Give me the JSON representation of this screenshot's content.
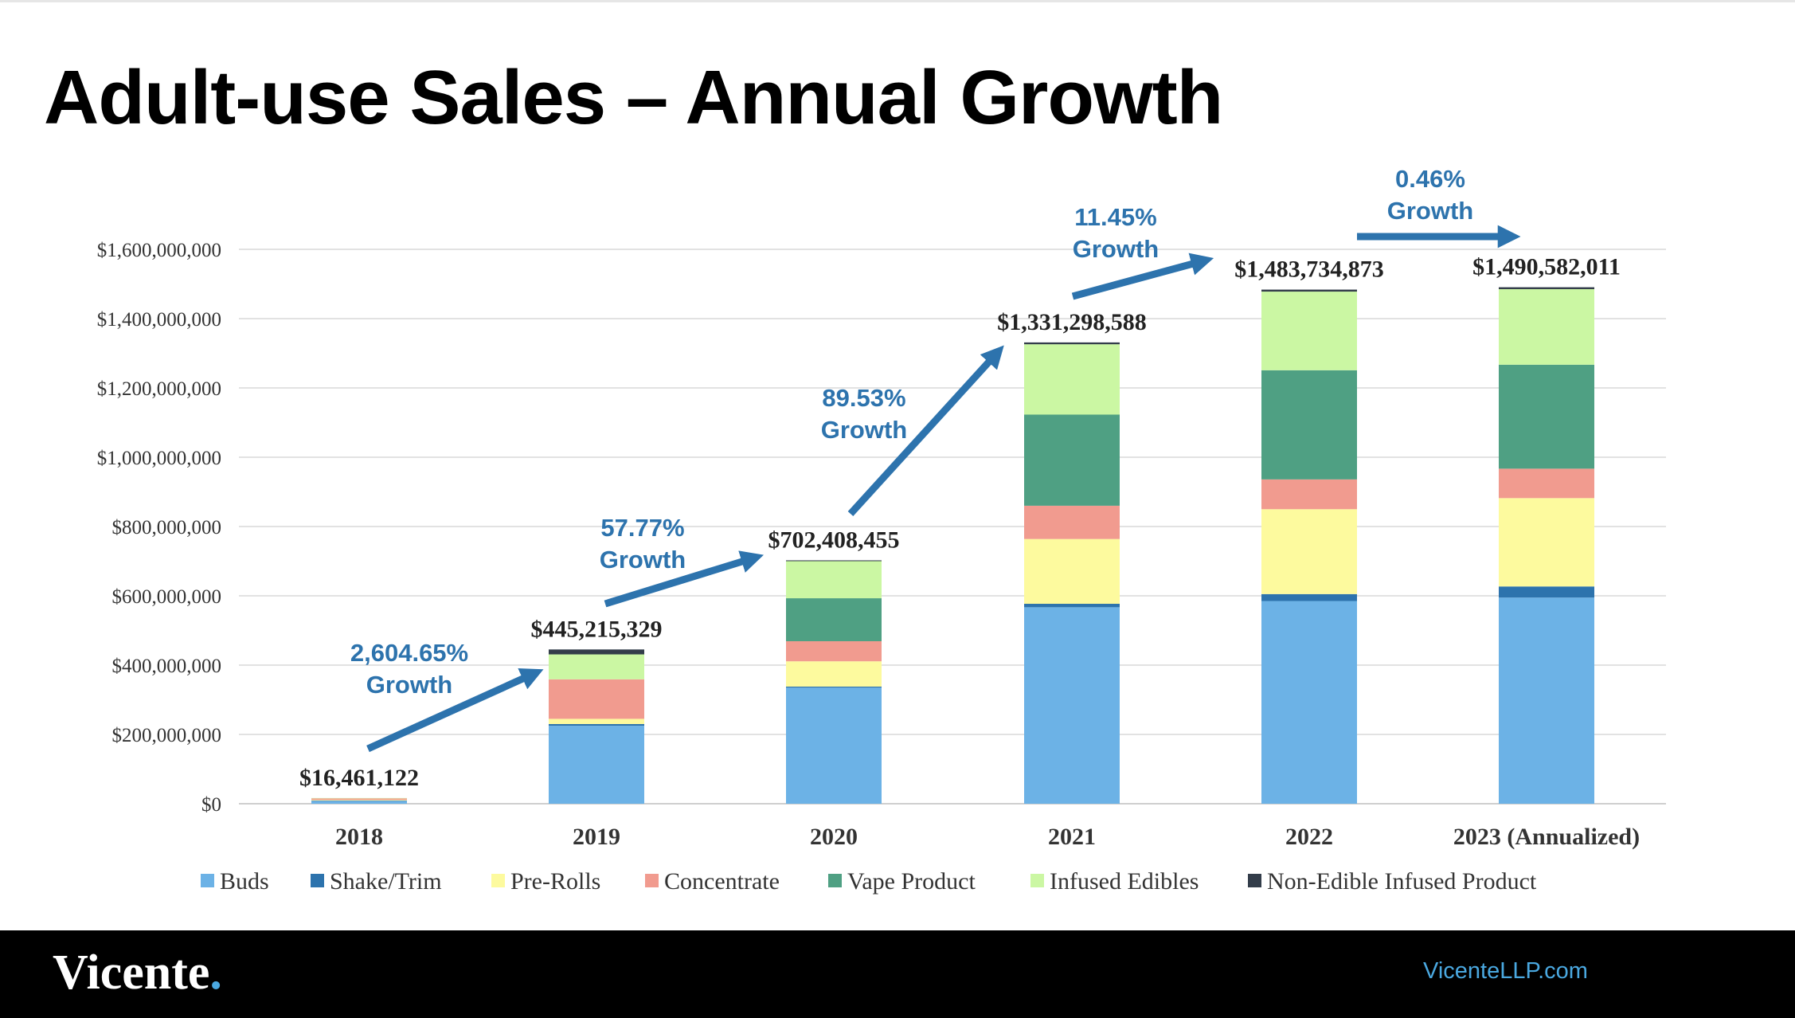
{
  "title": "Adult-use Sales – Annual Growth",
  "footer": {
    "logo": "Vicente",
    "logo_dot": ".",
    "website": "VicenteLLP.com"
  },
  "colors": {
    "Buds": "#6cb2e6",
    "Shake/Trim": "#2d73ad",
    "Pre-Rolls": "#fdfa9e",
    "Concentrate": "#f19b8f",
    "Vape Product": "#4fa083",
    "Infused Edibles": "#cbf7a3",
    "Non-Edible Infused Product": "#333d4a",
    "growth": "#2d73ad",
    "gridline": "#d9d9d9"
  },
  "chart_data": {
    "type": "bar",
    "stacked": true,
    "categories": [
      "2018",
      "2019",
      "2020",
      "2021",
      "2022",
      "2023 (Annualized)"
    ],
    "series": [
      {
        "name": "Buds",
        "values": [
          8000000,
          225000000,
          335000000,
          567000000,
          585000000,
          595000000
        ]
      },
      {
        "name": "Shake/Trim",
        "values": [
          1000000,
          5000000,
          3000000,
          10000000,
          20000000,
          32000000
        ]
      },
      {
        "name": "Pre-Rolls",
        "values": [
          2000000,
          15000000,
          73000000,
          187000000,
          245000000,
          255000000
        ]
      },
      {
        "name": "Concentrate",
        "values": [
          4500000,
          114000000,
          58000000,
          96000000,
          86000000,
          85000000
        ]
      },
      {
        "name": "Vape Product",
        "values": [
          0,
          0,
          124000000,
          263000000,
          315000000,
          300000000
        ]
      },
      {
        "name": "Infused Edibles",
        "values": [
          961122,
          72000000,
          107000000,
          203000000,
          227000000,
          218000000
        ]
      },
      {
        "name": "Non-Edible Infused Product",
        "values": [
          0,
          14215329,
          2408455,
          5298588,
          5734873,
          5582011
        ]
      }
    ],
    "totals": [
      16461122,
      445215329,
      702408455,
      1331298588,
      1483734873,
      1490582011
    ],
    "total_labels": [
      "$16,461,122",
      "$445,215,329",
      "$702,408,455",
      "$1,331,298,588",
      "$1,483,734,873",
      "$1,490,582,011"
    ],
    "growth_labels": [
      {
        "pct": "2,604.65%",
        "word": "Growth"
      },
      {
        "pct": "57.77%",
        "word": "Growth"
      },
      {
        "pct": "89.53%",
        "word": "Growth"
      },
      {
        "pct": "11.45%",
        "word": "Growth"
      },
      {
        "pct": "0.46%",
        "word": "Growth"
      }
    ],
    "ylim": [
      0,
      1600000000
    ],
    "yticks": [
      0,
      200000000,
      400000000,
      600000000,
      800000000,
      1000000000,
      1200000000,
      1400000000,
      1600000000
    ],
    "ytick_labels": [
      "$0",
      "$200,000,000",
      "$400,000,000",
      "$600,000,000",
      "$800,000,000",
      "$1,000,000,000",
      "$1,200,000,000",
      "$1,400,000,000",
      "$1,600,000,000"
    ],
    "grid": true,
    "legend": "bottom"
  }
}
